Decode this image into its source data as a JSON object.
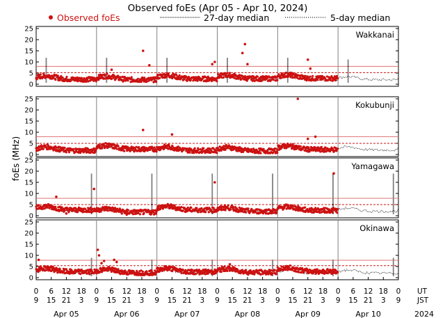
{
  "chart_data": {
    "type": "scatter",
    "title": "Observed foEs (Apr 05 - Apr 10, 2024)",
    "ylabel": "foEs (MHz)",
    "ylim": [
      0,
      25
    ],
    "yticks": [
      0,
      5,
      10,
      15,
      20,
      25
    ],
    "x_range_hours": [
      0,
      144
    ],
    "day_boundaries_hours": [
      0,
      24,
      48,
      72,
      96,
      120,
      144
    ],
    "ut_label": "UT",
    "jst_label": "JST",
    "ut_ticks": [
      "0",
      "6",
      "12",
      "18",
      "0",
      "6",
      "12",
      "18",
      "0",
      "6",
      "12",
      "18",
      "0",
      "6",
      "12",
      "18",
      "0",
      "6",
      "12",
      "18",
      "0",
      "6",
      "12",
      "18",
      "0"
    ],
    "jst_ticks": [
      "9",
      "15",
      "21",
      "3",
      "9",
      "15",
      "21",
      "3",
      "9",
      "15",
      "21",
      "3",
      "9",
      "15",
      "21",
      "3",
      "9",
      "15",
      "21",
      "3",
      "9",
      "15",
      "21",
      "3",
      "9"
    ],
    "dates": [
      "Apr 05",
      "Apr 06",
      "Apr 07",
      "Apr 08",
      "Apr 09",
      "Apr 10"
    ],
    "year": "2024",
    "legend": {
      "observed": "Observed foEs",
      "median27": "27-day median",
      "median5": "5-day median"
    },
    "colors": {
      "observed": "#cc1111",
      "dashed": "#cc1111",
      "solid": "#e07070",
      "median": "#000000",
      "day_line": "#808080"
    },
    "stations": [
      {
        "name": "Wakkanai",
        "upper_line": 8,
        "lower_line": 5.2,
        "spikes": [
          {
            "h": 4,
            "v": 12
          },
          {
            "h": 124,
            "v": 11
          },
          {
            "h": 28,
            "v": 12
          },
          {
            "h": 76,
            "v": 12
          },
          {
            "h": 100,
            "v": 12
          },
          {
            "h": 52,
            "v": 12
          }
        ],
        "outliers": [
          {
            "h": 42.5,
            "v": 15
          },
          {
            "h": 45,
            "v": 8.5
          },
          {
            "h": 30,
            "v": 6.5
          },
          {
            "h": 70,
            "v": 9
          },
          {
            "h": 71,
            "v": 10
          },
          {
            "h": 82,
            "v": 14
          },
          {
            "h": 83,
            "v": 18
          },
          {
            "h": 84,
            "v": 9
          },
          {
            "h": 108,
            "v": 11
          },
          {
            "h": 109,
            "v": 7
          }
        ],
        "observed": [
          {
            "day": 0,
            "base": 3.2
          },
          {
            "day": 1,
            "base": 3.0
          },
          {
            "day": 2,
            "base": 3.4
          },
          {
            "day": 3,
            "base": 3.5
          },
          {
            "day": 4,
            "base": 3.6
          }
        ]
      },
      {
        "name": "Kokubunji",
        "upper_line": 8,
        "lower_line": 5.0,
        "spikes": [],
        "outliers": [
          {
            "h": 42.5,
            "v": 11
          },
          {
            "h": 54,
            "v": 9
          },
          {
            "h": 108,
            "v": 7
          },
          {
            "h": 111,
            "v": 8
          },
          {
            "h": 104,
            "v": 25
          }
        ],
        "observed": [
          {
            "day": 0,
            "base": 2.8
          },
          {
            "day": 1,
            "base": 3.4
          },
          {
            "day": 2,
            "base": 2.8
          },
          {
            "day": 3,
            "base": 2.6
          },
          {
            "day": 4,
            "base": 3.2
          }
        ]
      },
      {
        "name": "Yamagawa",
        "upper_line": 7.8,
        "lower_line": 5.0,
        "spikes": [
          {
            "h": 22,
            "v": 19
          },
          {
            "h": 46,
            "v": 19
          },
          {
            "h": 70,
            "v": 19
          },
          {
            "h": 94,
            "v": 19
          },
          {
            "h": 118,
            "v": 19
          },
          {
            "h": 142,
            "v": 19
          }
        ],
        "outliers": [
          {
            "h": 8,
            "v": 8.5
          },
          {
            "h": 23,
            "v": 12
          },
          {
            "h": 71,
            "v": 15
          },
          {
            "h": 118.3,
            "v": 19
          },
          {
            "h": 12,
            "v": 1
          },
          {
            "h": 36,
            "v": 0.5
          }
        ],
        "observed": [
          {
            "day": 0,
            "base": 3.6
          },
          {
            "day": 1,
            "base": 2.6
          },
          {
            "day": 2,
            "base": 3.6
          },
          {
            "day": 3,
            "base": 3.0
          },
          {
            "day": 4,
            "base": 3.4
          }
        ]
      },
      {
        "name": "Okinawa",
        "upper_line": 7.8,
        "lower_line": 5.4,
        "spikes": [
          {
            "h": 22,
            "v": 9
          },
          {
            "h": 46,
            "v": 8
          },
          {
            "h": 70,
            "v": 8
          },
          {
            "h": 94,
            "v": 8
          },
          {
            "h": 118,
            "v": 8
          },
          {
            "h": 142,
            "v": 9
          }
        ],
        "outliers": [
          {
            "h": 24.5,
            "v": 12.5
          },
          {
            "h": 25,
            "v": 10
          },
          {
            "h": 26,
            "v": 6.5
          },
          {
            "h": 27,
            "v": 7.5
          },
          {
            "h": 31,
            "v": 8
          },
          {
            "h": 32,
            "v": 7
          },
          {
            "h": 1,
            "v": 8
          },
          {
            "h": 77,
            "v": 6
          }
        ],
        "observed": [
          {
            "day": 0,
            "base": 3.6
          },
          {
            "day": 1,
            "base": 3.2
          },
          {
            "day": 2,
            "base": 3.6
          },
          {
            "day": 3,
            "base": 3.4
          },
          {
            "day": 4,
            "base": 3.8
          }
        ]
      }
    ]
  }
}
